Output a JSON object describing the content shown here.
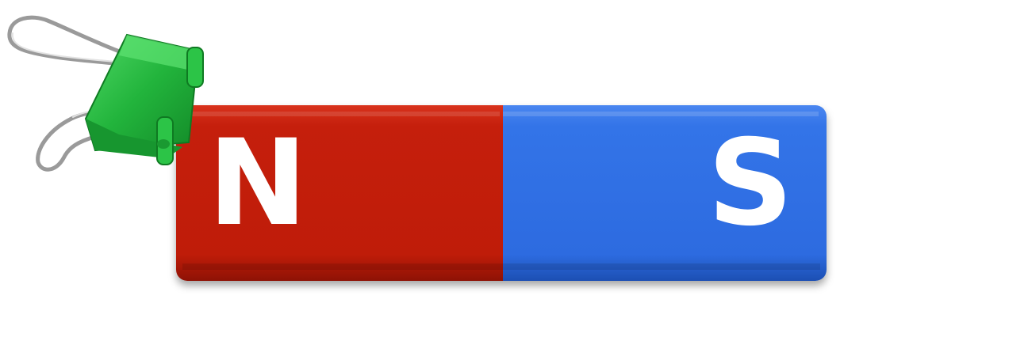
{
  "magnet": {
    "north_label": "N",
    "south_label": "S",
    "north_color": "#c11d0b",
    "south_color": "#2f6fe6"
  },
  "clip": {
    "clip_color": "#22b43c",
    "wire_color": "#a8a8a8"
  }
}
